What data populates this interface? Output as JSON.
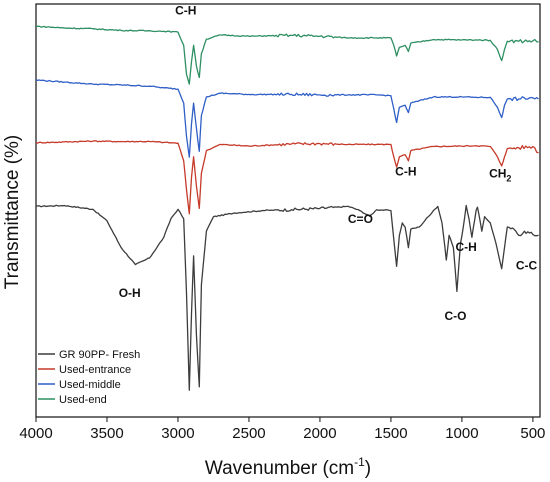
{
  "chart_data": {
    "type": "line",
    "xlabel": "Wavenumber (cm",
    "xlabel_sup": "-1",
    "xlabel_tail": ")",
    "ylabel": "Transmittance (%)",
    "xlim": [
      4000,
      450
    ],
    "ylim": [
      0,
      100
    ],
    "x_ticks": [
      4000,
      3500,
      3000,
      2500,
      2000,
      1500,
      1000,
      500
    ],
    "grid": false,
    "legend_position": "bottom-left",
    "series": [
      {
        "name": "GR 90PP- Fresh",
        "color": "#3d3d3d",
        "points": [
          [
            4000,
            51
          ],
          [
            3800,
            51.2
          ],
          [
            3600,
            50.3
          ],
          [
            3500,
            47.5
          ],
          [
            3400,
            41
          ],
          [
            3300,
            36.9
          ],
          [
            3200,
            38.5
          ],
          [
            3100,
            43.5
          ],
          [
            3050,
            48
          ],
          [
            3000,
            50.3
          ],
          [
            2960,
            48
          ],
          [
            2940,
            30
          ],
          [
            2920,
            6.5
          ],
          [
            2905,
            25
          ],
          [
            2890,
            39
          ],
          [
            2870,
            20
          ],
          [
            2850,
            7.3
          ],
          [
            2835,
            32
          ],
          [
            2800,
            45
          ],
          [
            2750,
            48.5
          ],
          [
            2600,
            49.4
          ],
          [
            2400,
            50
          ],
          [
            2200,
            50.2
          ],
          [
            2000,
            50.5
          ],
          [
            1800,
            51
          ],
          [
            1720,
            50
          ],
          [
            1650,
            48.6
          ],
          [
            1600,
            50.2
          ],
          [
            1500,
            50
          ],
          [
            1480,
            43
          ],
          [
            1460,
            36.5
          ],
          [
            1440,
            44
          ],
          [
            1420,
            47
          ],
          [
            1400,
            46
          ],
          [
            1377,
            41
          ],
          [
            1360,
            45.5
          ],
          [
            1300,
            46
          ],
          [
            1200,
            50
          ],
          [
            1170,
            51
          ],
          [
            1140,
            47
          ],
          [
            1110,
            38
          ],
          [
            1090,
            44
          ],
          [
            1060,
            41
          ],
          [
            1035,
            30.4
          ],
          [
            1010,
            42
          ],
          [
            990,
            46
          ],
          [
            970,
            51.2
          ],
          [
            950,
            48
          ],
          [
            930,
            43.5
          ],
          [
            900,
            50
          ],
          [
            890,
            50.8
          ],
          [
            860,
            45
          ],
          [
            840,
            48.5
          ],
          [
            800,
            47
          ],
          [
            760,
            42
          ],
          [
            720,
            35.9
          ],
          [
            700,
            41
          ],
          [
            680,
            46
          ],
          [
            620,
            45
          ],
          [
            600,
            44
          ],
          [
            560,
            45
          ],
          [
            500,
            44.2
          ],
          [
            460,
            44
          ]
        ]
      },
      {
        "name": "Used-entrance",
        "color": "#c63a2a",
        "points": [
          [
            4000,
            66.4
          ],
          [
            3800,
            66.6
          ],
          [
            3600,
            66.8
          ],
          [
            3400,
            66.7
          ],
          [
            3200,
            66.7
          ],
          [
            3100,
            66.5
          ],
          [
            3000,
            66.3
          ],
          [
            2960,
            62
          ],
          [
            2940,
            55
          ],
          [
            2920,
            49.2
          ],
          [
            2905,
            58
          ],
          [
            2890,
            63
          ],
          [
            2870,
            56
          ],
          [
            2850,
            50.5
          ],
          [
            2835,
            59
          ],
          [
            2800,
            64.5
          ],
          [
            2700,
            66
          ],
          [
            2500,
            65.6
          ],
          [
            2200,
            66.1
          ],
          [
            2000,
            66.2
          ],
          [
            1800,
            66
          ],
          [
            1600,
            66
          ],
          [
            1500,
            66
          ],
          [
            1480,
            63
          ],
          [
            1460,
            60.5
          ],
          [
            1440,
            63
          ],
          [
            1400,
            63.5
          ],
          [
            1377,
            62
          ],
          [
            1360,
            64.5
          ],
          [
            1200,
            65.5
          ],
          [
            1000,
            65.6
          ],
          [
            900,
            65.7
          ],
          [
            800,
            65.5
          ],
          [
            750,
            63
          ],
          [
            720,
            60.8
          ],
          [
            700,
            63
          ],
          [
            680,
            65
          ],
          [
            600,
            65.2
          ],
          [
            500,
            65.5
          ],
          [
            460,
            64
          ]
        ]
      },
      {
        "name": "Used-middle",
        "color": "#2f5fc6",
        "points": [
          [
            4000,
            81.6
          ],
          [
            3800,
            81.1
          ],
          [
            3600,
            80.6
          ],
          [
            3400,
            80.4
          ],
          [
            3200,
            80.1
          ],
          [
            3100,
            79.7
          ],
          [
            3000,
            79.4
          ],
          [
            2960,
            76
          ],
          [
            2940,
            68
          ],
          [
            2920,
            62.9
          ],
          [
            2905,
            71
          ],
          [
            2890,
            76
          ],
          [
            2870,
            70
          ],
          [
            2850,
            64.3
          ],
          [
            2835,
            73
          ],
          [
            2800,
            77.5
          ],
          [
            2700,
            78.4
          ],
          [
            2500,
            78.1
          ],
          [
            2200,
            78.1
          ],
          [
            2000,
            78
          ],
          [
            1800,
            78
          ],
          [
            1600,
            78
          ],
          [
            1500,
            77.8
          ],
          [
            1480,
            74.6
          ],
          [
            1460,
            71.3
          ],
          [
            1440,
            75
          ],
          [
            1400,
            75.5
          ],
          [
            1377,
            73.7
          ],
          [
            1360,
            76
          ],
          [
            1200,
            77.5
          ],
          [
            1000,
            77.5
          ],
          [
            900,
            77.4
          ],
          [
            800,
            77.4
          ],
          [
            750,
            75
          ],
          [
            720,
            72.5
          ],
          [
            700,
            75.5
          ],
          [
            680,
            77
          ],
          [
            600,
            77
          ],
          [
            500,
            77.3
          ],
          [
            460,
            77
          ]
        ]
      },
      {
        "name": "Used-end",
        "color": "#2d8f62",
        "points": [
          [
            4000,
            94.6
          ],
          [
            3800,
            94.2
          ],
          [
            3600,
            94
          ],
          [
            3400,
            93.6
          ],
          [
            3200,
            93.5
          ],
          [
            3100,
            93.4
          ],
          [
            3000,
            93.2
          ],
          [
            2960,
            90
          ],
          [
            2940,
            83
          ],
          [
            2920,
            80.6
          ],
          [
            2905,
            86
          ],
          [
            2890,
            90
          ],
          [
            2870,
            85
          ],
          [
            2850,
            82.2
          ],
          [
            2835,
            88
          ],
          [
            2800,
            91.5
          ],
          [
            2700,
            92.5
          ],
          [
            2500,
            92.2
          ],
          [
            2200,
            92.4
          ],
          [
            2000,
            92.2
          ],
          [
            1800,
            91.8
          ],
          [
            1600,
            91.8
          ],
          [
            1500,
            91.8
          ],
          [
            1480,
            90
          ],
          [
            1460,
            87.4
          ],
          [
            1440,
            89.5
          ],
          [
            1400,
            90
          ],
          [
            1377,
            88.5
          ],
          [
            1360,
            90.5
          ],
          [
            1200,
            91.4
          ],
          [
            1000,
            91.3
          ],
          [
            900,
            91.3
          ],
          [
            800,
            91.2
          ],
          [
            750,
            89
          ],
          [
            720,
            86.3
          ],
          [
            700,
            89
          ],
          [
            680,
            91
          ],
          [
            600,
            91
          ],
          [
            500,
            91.1
          ],
          [
            460,
            90.8
          ]
        ]
      }
    ],
    "annotations": [
      {
        "text": "C-H",
        "x": 2945,
        "y": 97.5
      },
      {
        "text": "C-H",
        "x": 1395,
        "y": 58.5
      },
      {
        "text": "CH",
        "sub": "2",
        "x": 730,
        "y": 58
      },
      {
        "text": "C=O",
        "x": 1715,
        "y": 47
      },
      {
        "text": "O-H",
        "x": 3340,
        "y": 29
      },
      {
        "text": "C-H",
        "x": 970,
        "y": 40.2
      },
      {
        "text": "C-O",
        "x": 1045,
        "y": 23.5
      },
      {
        "text": "C-C",
        "x": 545,
        "y": 35.7
      }
    ]
  }
}
